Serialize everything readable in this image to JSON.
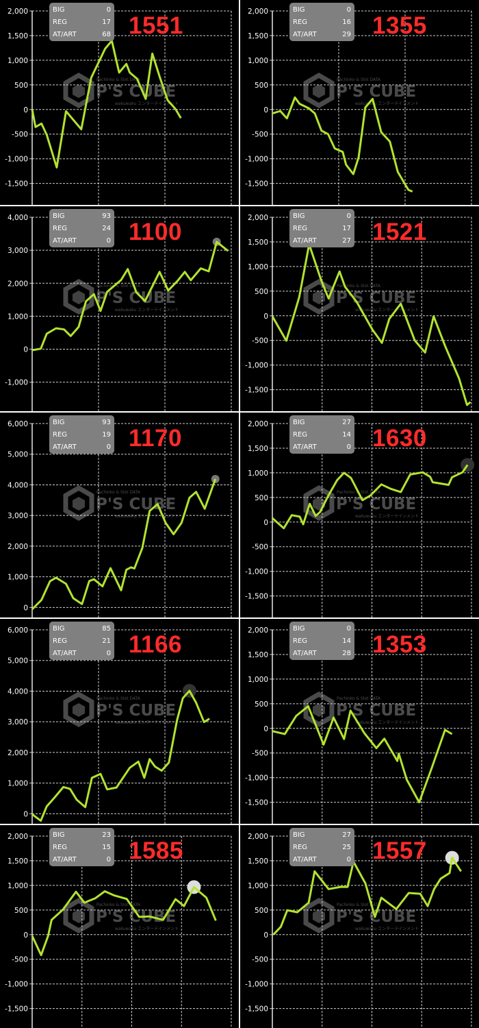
{
  "colors": {
    "line": "#b3e32f",
    "background": "#000000",
    "machine_number": "#ff2b2b",
    "stat_box": "#808080",
    "grid": "#d0d0d0",
    "separator": "#ffffff"
  },
  "watermark": {
    "top": "Pachinko & Slot DATA",
    "brand": "P'S CUBE",
    "bottom": "wakuwaku エンターテインメント"
  },
  "chart_data": [
    {
      "type": "line",
      "machine": "1551",
      "stats": {
        "BIG": "0",
        "REG": "17",
        "AT/ART": "68"
      },
      "ylim": [
        -1950,
        2000
      ],
      "yticks": [
        2000,
        1500,
        1000,
        500,
        0,
        -500,
        -1000,
        -1500
      ],
      "ytick_labels": [
        "2,000",
        "1,500",
        "1,000",
        "500",
        "0",
        "-500",
        "-1,000",
        "-1,500"
      ],
      "xlim": [
        0,
        3
      ],
      "grid": true,
      "points": [
        [
          0,
          0
        ],
        [
          0.05,
          -355
        ],
        [
          0.14,
          -285
        ],
        [
          0.22,
          -515
        ],
        [
          0.37,
          -1175
        ],
        [
          0.51,
          -35
        ],
        [
          0.74,
          -400
        ],
        [
          0.89,
          645
        ],
        [
          1.1,
          1235
        ],
        [
          1.2,
          1395
        ],
        [
          1.31,
          750
        ],
        [
          1.42,
          925
        ],
        [
          1.47,
          750
        ],
        [
          1.58,
          625
        ],
        [
          1.71,
          215
        ],
        [
          1.81,
          1135
        ],
        [
          1.92,
          670
        ],
        [
          2.04,
          190
        ],
        [
          2.16,
          10
        ],
        [
          2.24,
          -175
        ]
      ],
      "marker": null
    },
    {
      "type": "line",
      "machine": "1355",
      "stats": {
        "BIG": "0",
        "REG": "16",
        "AT/ART": "29"
      },
      "ylim": [
        -1950,
        2000
      ],
      "yticks": [
        2000,
        1500,
        1000,
        500,
        0,
        -500,
        -1000,
        -1500
      ],
      "ytick_labels": [
        "2,000",
        "1,500",
        "1,000",
        "500",
        "0",
        "-500",
        "-1,000",
        "-1,500"
      ],
      "xlim": [
        0,
        3
      ],
      "grid": true,
      "points": [
        [
          0,
          -80
        ],
        [
          0.12,
          -30
        ],
        [
          0.22,
          -180
        ],
        [
          0.34,
          245
        ],
        [
          0.41,
          115
        ],
        [
          0.55,
          25
        ],
        [
          0.64,
          -80
        ],
        [
          0.74,
          -430
        ],
        [
          0.84,
          -500
        ],
        [
          0.94,
          -790
        ],
        [
          1.06,
          -860
        ],
        [
          1.11,
          -1120
        ],
        [
          1.22,
          -1310
        ],
        [
          1.3,
          -970
        ],
        [
          1.4,
          40
        ],
        [
          1.51,
          215
        ],
        [
          1.64,
          -460
        ],
        [
          1.77,
          -650
        ],
        [
          1.89,
          -1265
        ],
        [
          2.05,
          -1630
        ],
        [
          2.11,
          -1665
        ]
      ],
      "marker": null
    },
    {
      "type": "line",
      "machine": "1100",
      "stats": {
        "BIG": "93",
        "REG": "24",
        "AT/ART": "0"
      },
      "ylim": [
        -1900,
        4000
      ],
      "yticks": [
        4000,
        3000,
        2000,
        1000,
        0,
        -1000
      ],
      "ytick_labels": [
        "4,000",
        "3,000",
        "2,000",
        "1,000",
        "0",
        "-1,000"
      ],
      "xlim": [
        0,
        3
      ],
      "grid": true,
      "points": [
        [
          0,
          -30
        ],
        [
          0.13,
          15
        ],
        [
          0.22,
          470
        ],
        [
          0.36,
          635
        ],
        [
          0.48,
          600
        ],
        [
          0.58,
          400
        ],
        [
          0.7,
          675
        ],
        [
          0.81,
          1450
        ],
        [
          0.93,
          1670
        ],
        [
          1.03,
          1160
        ],
        [
          1.13,
          1740
        ],
        [
          1.34,
          2100
        ],
        [
          1.44,
          2430
        ],
        [
          1.57,
          1720
        ],
        [
          1.7,
          1460
        ],
        [
          1.92,
          2345
        ],
        [
          2.05,
          1780
        ],
        [
          2.19,
          2070
        ],
        [
          2.3,
          2345
        ],
        [
          2.39,
          2090
        ],
        [
          2.54,
          2450
        ],
        [
          2.66,
          2360
        ],
        [
          2.78,
          3255
        ],
        [
          2.95,
          2980
        ]
      ],
      "marker": {
        "index": 22,
        "color": "#777777",
        "size": "small"
      }
    },
    {
      "type": "line",
      "machine": "1521",
      "stats": {
        "BIG": "0",
        "REG": "17",
        "AT/ART": "27"
      },
      "ylim": [
        -1950,
        2000
      ],
      "yticks": [
        2000,
        1500,
        1000,
        500,
        0,
        -500,
        -1000,
        -1500
      ],
      "ytick_labels": [
        "2,000",
        "1,500",
        "1,000",
        "500",
        "0",
        "-500",
        "-1,000",
        "-1,500"
      ],
      "xlim": [
        0,
        4
      ],
      "grid": true,
      "points": [
        [
          0,
          -10
        ],
        [
          0.28,
          -505
        ],
        [
          0.54,
          380
        ],
        [
          0.74,
          1450
        ],
        [
          0.98,
          725
        ],
        [
          1.13,
          350
        ],
        [
          1.35,
          900
        ],
        [
          1.46,
          590
        ],
        [
          1.69,
          290
        ],
        [
          2.01,
          -280
        ],
        [
          2.2,
          -550
        ],
        [
          2.35,
          -60
        ],
        [
          2.58,
          245
        ],
        [
          2.86,
          -500
        ],
        [
          3.07,
          -745
        ],
        [
          3.24,
          -10
        ],
        [
          3.47,
          -610
        ],
        [
          3.75,
          -1270
        ],
        [
          3.91,
          -1810
        ],
        [
          3.98,
          -1750
        ]
      ],
      "marker": null
    },
    {
      "type": "line",
      "machine": "1170",
      "stats": {
        "BIG": "93",
        "REG": "19",
        "AT/ART": "0"
      },
      "ylim": [
        -350,
        6000
      ],
      "yticks": [
        6000,
        5000,
        4000,
        3000,
        2000,
        1000,
        0
      ],
      "ytick_labels": [
        "6,000",
        "5,000",
        "4,000",
        "3,000",
        "2,000",
        "1,000",
        "0"
      ],
      "xlim": [
        0,
        3
      ],
      "grid": true,
      "points": [
        [
          0,
          -60
        ],
        [
          0.14,
          245
        ],
        [
          0.27,
          860
        ],
        [
          0.36,
          970
        ],
        [
          0.51,
          770
        ],
        [
          0.62,
          300
        ],
        [
          0.75,
          110
        ],
        [
          0.86,
          860
        ],
        [
          0.93,
          920
        ],
        [
          1.06,
          690
        ],
        [
          1.18,
          1280
        ],
        [
          1.34,
          560
        ],
        [
          1.42,
          1230
        ],
        [
          1.49,
          1310
        ],
        [
          1.54,
          1270
        ],
        [
          1.66,
          1940
        ],
        [
          1.77,
          3150
        ],
        [
          1.89,
          3370
        ],
        [
          2.01,
          2760
        ],
        [
          2.13,
          2390
        ],
        [
          2.25,
          2760
        ],
        [
          2.37,
          3580
        ],
        [
          2.47,
          3770
        ],
        [
          2.6,
          3220
        ],
        [
          2.76,
          4190
        ]
      ],
      "marker": {
        "index": 24,
        "color": "#777777",
        "size": "small"
      }
    },
    {
      "type": "line",
      "machine": "1630",
      "stats": {
        "BIG": "27",
        "REG": "14",
        "AT/ART": "0"
      },
      "ylim": [
        -1950,
        2000
      ],
      "yticks": [
        2000,
        1500,
        1000,
        500,
        0,
        -500,
        -1000,
        -1500
      ],
      "ytick_labels": [
        "2,000",
        "1,500",
        "1,000",
        "500",
        "0",
        "-500",
        "-1,000",
        "-1,500"
      ],
      "xlim": [
        0,
        4
      ],
      "grid": true,
      "points": [
        [
          0,
          80
        ],
        [
          0.23,
          -125
        ],
        [
          0.39,
          140
        ],
        [
          0.55,
          110
        ],
        [
          0.62,
          -45
        ],
        [
          0.75,
          370
        ],
        [
          0.87,
          125
        ],
        [
          0.96,
          205
        ],
        [
          1.12,
          530
        ],
        [
          1.3,
          850
        ],
        [
          1.44,
          1000
        ],
        [
          1.58,
          895
        ],
        [
          1.81,
          445
        ],
        [
          1.97,
          540
        ],
        [
          2.19,
          765
        ],
        [
          2.38,
          675
        ],
        [
          2.58,
          610
        ],
        [
          2.77,
          965
        ],
        [
          3.02,
          1010
        ],
        [
          3.17,
          920
        ],
        [
          3.22,
          810
        ],
        [
          3.54,
          755
        ],
        [
          3.61,
          910
        ],
        [
          3.82,
          1010
        ],
        [
          3.92,
          1160
        ]
      ],
      "marker": {
        "index": 24,
        "color": "#333333",
        "size": "large"
      }
    },
    {
      "type": "line",
      "machine": "1166",
      "stats": {
        "BIG": "85",
        "REG": "21",
        "AT/ART": "0"
      },
      "ylim": [
        -350,
        6000
      ],
      "yticks": [
        6000,
        5000,
        4000,
        3000,
        2000,
        1000,
        0
      ],
      "ytick_labels": [
        "6,000",
        "5,000",
        "4,000",
        "3,000",
        "2,000",
        "1,000",
        "0"
      ],
      "xlim": [
        0,
        3
      ],
      "grid": true,
      "points": [
        [
          0,
          -20
        ],
        [
          0.13,
          -230
        ],
        [
          0.22,
          240
        ],
        [
          0.34,
          535
        ],
        [
          0.47,
          870
        ],
        [
          0.57,
          810
        ],
        [
          0.67,
          460
        ],
        [
          0.8,
          215
        ],
        [
          0.9,
          1170
        ],
        [
          1.03,
          1300
        ],
        [
          1.13,
          795
        ],
        [
          1.27,
          855
        ],
        [
          1.47,
          1500
        ],
        [
          1.6,
          1700
        ],
        [
          1.69,
          1170
        ],
        [
          1.77,
          1780
        ],
        [
          1.85,
          1540
        ],
        [
          1.95,
          1405
        ],
        [
          2.06,
          1670
        ],
        [
          2.18,
          3030
        ],
        [
          2.27,
          3770
        ],
        [
          2.37,
          4010
        ],
        [
          2.47,
          3620
        ],
        [
          2.59,
          2990
        ],
        [
          2.67,
          3100
        ]
      ],
      "marker": {
        "index": 21,
        "color": "#333333",
        "size": "large"
      }
    },
    {
      "type": "line",
      "machine": "1353",
      "stats": {
        "BIG": "0",
        "REG": "14",
        "AT/ART": "28"
      },
      "ylim": [
        -1950,
        2000
      ],
      "yticks": [
        2000,
        1500,
        1000,
        500,
        0,
        -500,
        -1000,
        -1500
      ],
      "ytick_labels": [
        "2,000",
        "1,500",
        "1,000",
        "500",
        "0",
        "-500",
        "-1,000",
        "-1,500"
      ],
      "xlim": [
        0,
        4
      ],
      "grid": true,
      "points": [
        [
          0,
          -55
        ],
        [
          0.25,
          -115
        ],
        [
          0.48,
          255
        ],
        [
          0.72,
          450
        ],
        [
          1.03,
          -330
        ],
        [
          1.23,
          220
        ],
        [
          1.44,
          -215
        ],
        [
          1.57,
          360
        ],
        [
          1.85,
          -100
        ],
        [
          2.09,
          -400
        ],
        [
          2.25,
          -210
        ],
        [
          2.51,
          -660
        ],
        [
          2.54,
          -515
        ],
        [
          2.7,
          -1040
        ],
        [
          2.95,
          -1500
        ],
        [
          3.2,
          -810
        ],
        [
          3.47,
          -30
        ],
        [
          3.61,
          -115
        ]
      ],
      "marker": null
    },
    {
      "type": "line",
      "machine": "1585",
      "stats": {
        "BIG": "23",
        "REG": "15",
        "AT/ART": "0"
      },
      "ylim": [
        -1950,
        2000
      ],
      "yticks": [
        2000,
        1500,
        1000,
        500,
        0,
        -500,
        -1000,
        -1500
      ],
      "ytick_labels": [
        "2,000",
        "1,500",
        "1,000",
        "500",
        "0",
        "-500",
        "-1,000",
        "-1,500"
      ],
      "xlim": [
        0,
        4
      ],
      "grid": true,
      "points": [
        [
          0,
          -25
        ],
        [
          0.18,
          -415
        ],
        [
          0.32,
          -25
        ],
        [
          0.39,
          300
        ],
        [
          0.62,
          510
        ],
        [
          0.88,
          870
        ],
        [
          1.05,
          650
        ],
        [
          1.27,
          740
        ],
        [
          1.46,
          880
        ],
        [
          1.65,
          795
        ],
        [
          1.9,
          725
        ],
        [
          2.15,
          360
        ],
        [
          2.35,
          370
        ],
        [
          2.63,
          300
        ],
        [
          2.88,
          720
        ],
        [
          3.05,
          580
        ],
        [
          3.25,
          965
        ],
        [
          3.5,
          750
        ],
        [
          3.69,
          285
        ]
      ],
      "marker": {
        "index": 16,
        "color": "#dddddd",
        "size": "large"
      }
    },
    {
      "type": "line",
      "machine": "1557",
      "stats": {
        "BIG": "27",
        "REG": "25",
        "AT/ART": "0"
      },
      "ylim": [
        -1950,
        2000
      ],
      "yticks": [
        2000,
        1500,
        1000,
        500,
        0,
        -500,
        -1000,
        -1500
      ],
      "ytick_labels": [
        "2,000",
        "1,500",
        "1,000",
        "500",
        "0",
        "-500",
        "-1,000",
        "-1,500"
      ],
      "xlim": [
        0,
        4
      ],
      "grid": true,
      "points": [
        [
          0.02,
          0
        ],
        [
          0.17,
          160
        ],
        [
          0.3,
          495
        ],
        [
          0.5,
          455
        ],
        [
          0.73,
          650
        ],
        [
          0.85,
          1285
        ],
        [
          1.13,
          925
        ],
        [
          1.37,
          970
        ],
        [
          1.51,
          970
        ],
        [
          1.63,
          1480
        ],
        [
          1.87,
          1040
        ],
        [
          2.06,
          360
        ],
        [
          2.19,
          750
        ],
        [
          2.49,
          520
        ],
        [
          2.74,
          845
        ],
        [
          2.97,
          830
        ],
        [
          3.12,
          580
        ],
        [
          3.25,
          925
        ],
        [
          3.38,
          1135
        ],
        [
          3.56,
          1250
        ],
        [
          3.61,
          1560
        ],
        [
          3.79,
          1285
        ]
      ],
      "marker": {
        "index": 20,
        "color": "#dddddd",
        "size": "large"
      }
    }
  ]
}
